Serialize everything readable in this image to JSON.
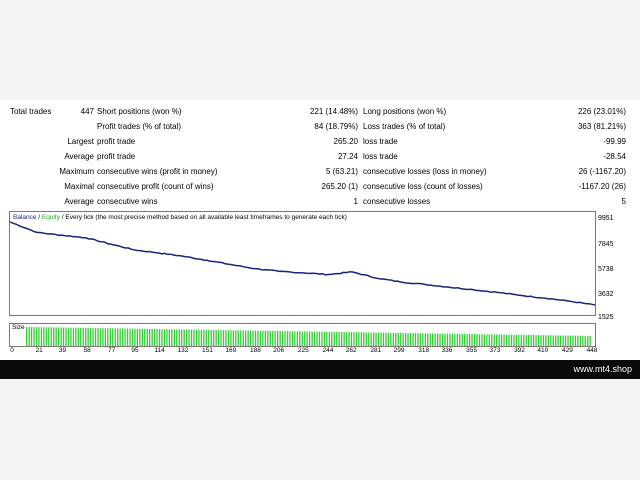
{
  "stats": {
    "rows": [
      {
        "c1": "Total trades",
        "c2": "447",
        "c3": "Short positions (won %)",
        "c4": "221 (14.48%)",
        "c5": "Long positions (won %)",
        "c6": "226 (23.01%)"
      },
      {
        "c1": "",
        "c2": "",
        "c3": "Profit trades (% of total)",
        "c4": "84 (18.79%)",
        "c5": "Loss trades (% of total)",
        "c6": "363 (81.21%)"
      },
      {
        "c1": "Largest",
        "c2": "",
        "c3": "profit trade",
        "c4": "265.20",
        "c5": "loss trade",
        "c6": "-99.99"
      },
      {
        "c1": "Average",
        "c2": "",
        "c3": "profit trade",
        "c4": "27.24",
        "c5": "loss trade",
        "c6": "-28.54"
      },
      {
        "c1": "Maximum",
        "c2": "",
        "c3": "consecutive wins (profit in money)",
        "c4": "5 (63.21)",
        "c5": "consecutive losses (loss in money)",
        "c6": "26 (-1167.20)"
      },
      {
        "c1": "Maximal",
        "c2": "",
        "c3": "consecutive profit (count of wins)",
        "c4": "265.20 (1)",
        "c5": "consecutive loss (count of losses)",
        "c6": "-1167.20 (26)"
      },
      {
        "c1": "Average",
        "c2": "",
        "c3": "consecutive wins",
        "c4": "1",
        "c5": "consecutive losses",
        "c6": "5"
      }
    ]
  },
  "chart": {
    "legend_balance": "Balance",
    "legend_sep": " / ",
    "legend_equity": "Equity",
    "legend_rest": " / Every tick (the most precise method based on all available least timeframes to generate each tick)",
    "size_label": "Size",
    "colors": {
      "balance": "#1a237e",
      "equity": "#22a822",
      "size_bars": "#33cc33"
    }
  },
  "chart_data": {
    "type": "line",
    "series": [
      {
        "name": "Balance",
        "x": [
          0,
          21,
          39,
          58,
          77,
          95,
          114,
          132,
          151,
          169,
          188,
          206,
          225,
          244,
          262,
          281,
          299,
          318,
          336,
          355,
          373,
          392,
          410,
          429,
          448
        ],
        "values": [
          10000,
          9000,
          8750,
          8500,
          7900,
          7350,
          7050,
          6750,
          6350,
          5950,
          5550,
          5300,
          5150,
          5000,
          5250,
          4650,
          4300,
          4050,
          3800,
          3550,
          3300,
          3000,
          2750,
          2450,
          2100
        ]
      }
    ],
    "yticks": [
      "9951",
      "7845",
      "5738",
      "3632",
      "1525"
    ],
    "xticks": [
      "0",
      "21",
      "39",
      "58",
      "77",
      "95",
      "114",
      "132",
      "151",
      "169",
      "188",
      "206",
      "225",
      "244",
      "262",
      "281",
      "299",
      "318",
      "336",
      "355",
      "373",
      "392",
      "410",
      "429",
      "448"
    ],
    "ylim": [
      1525,
      10000
    ],
    "xlim": [
      0,
      448
    ]
  },
  "footer": {
    "site": "www.mt4.shop"
  }
}
